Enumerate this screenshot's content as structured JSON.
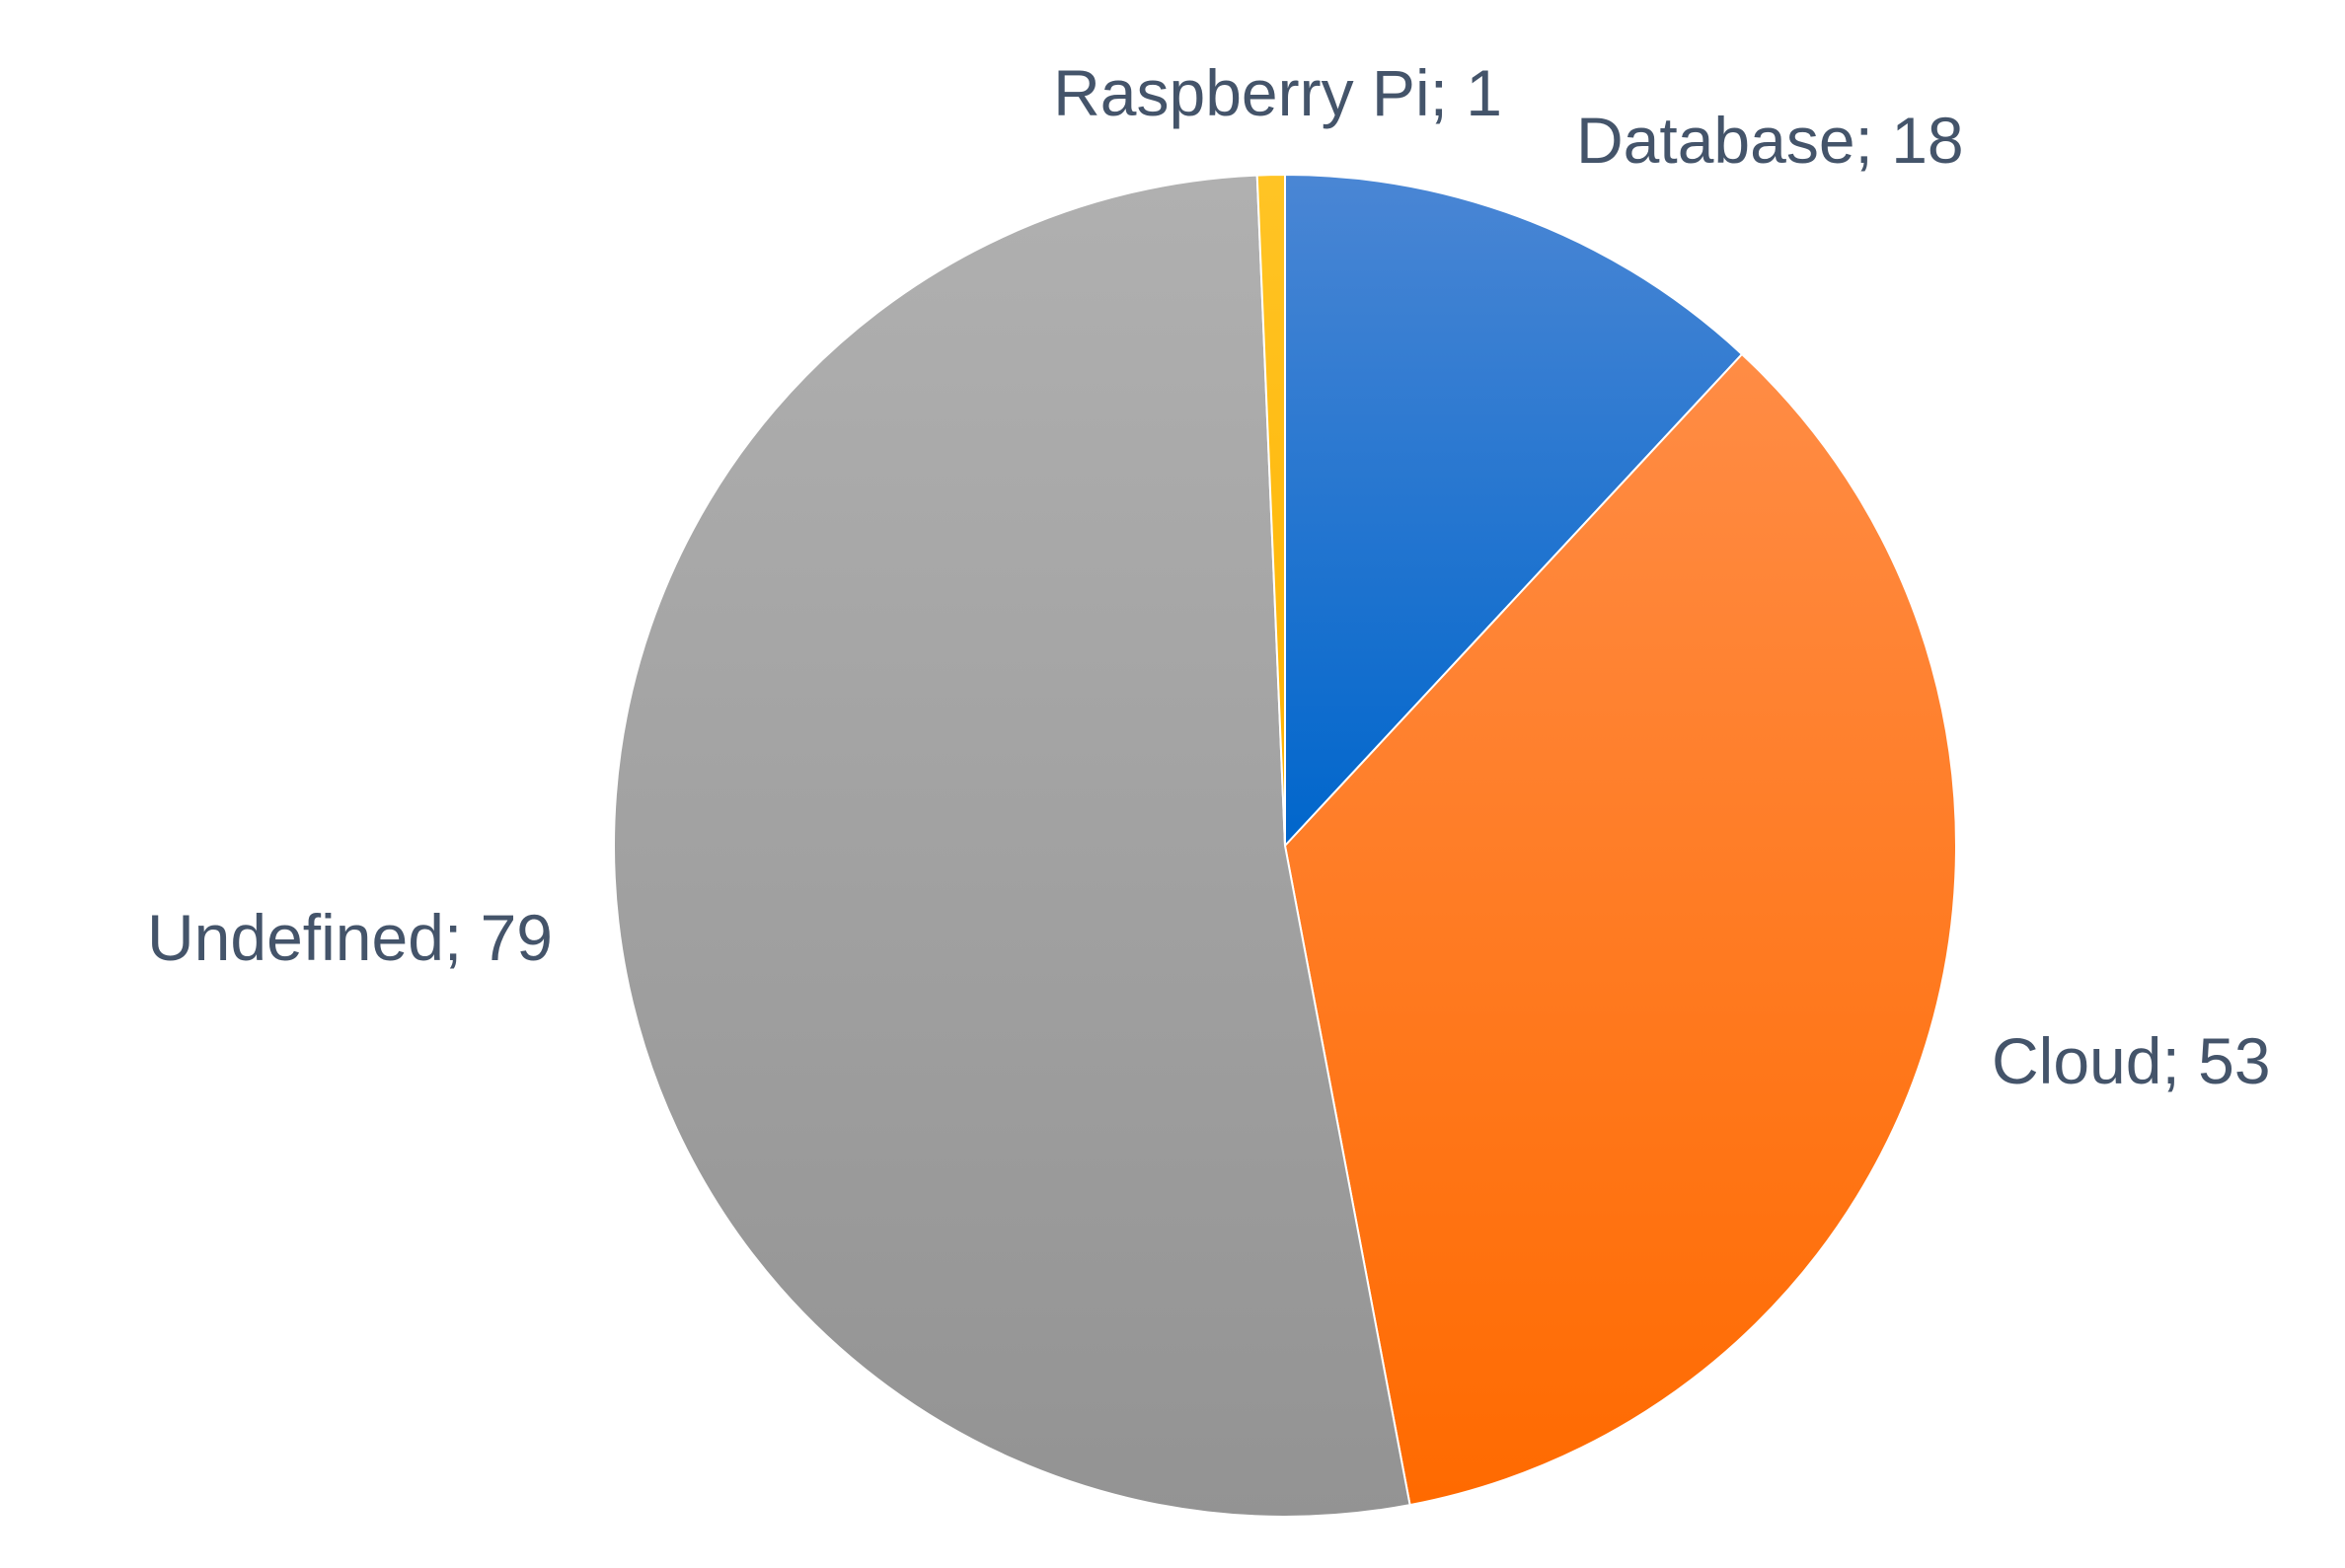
{
  "chart_data": {
    "type": "pie",
    "title": "",
    "start_angle_deg": 0,
    "direction": "clockwise",
    "slices": [
      {
        "label": "Database",
        "value": 18,
        "data_label": "Database; 18",
        "color_top": "#4A86D4",
        "color_bottom": "#0066CC"
      },
      {
        "label": "Cloud",
        "value": 53,
        "data_label": "Cloud; 53",
        "color_top": "#FF8C45",
        "color_bottom": "#FF6A00"
      },
      {
        "label": "Undefined",
        "value": 79,
        "data_label": "Undefined; 79",
        "color_top": "#B0B0B0",
        "color_bottom": "#939393"
      },
      {
        "label": "Raspberry Pi",
        "value": 1,
        "data_label": "Raspberry Pi; 1",
        "color_top": "#FFC425",
        "color_bottom": "#FFB300"
      }
    ],
    "legend": "none",
    "label_color": "#44546A"
  }
}
